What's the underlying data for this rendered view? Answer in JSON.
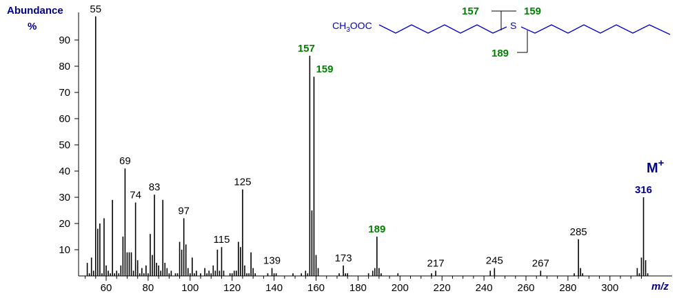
{
  "chart_data": {
    "type": "bar",
    "ylabel_line1": "Abundance",
    "ylabel_line2": "%",
    "xlabel": "m/z",
    "xlim": [
      44,
      320
    ],
    "ylim": [
      0,
      100
    ],
    "x_ticks": [
      60,
      80,
      100,
      120,
      140,
      160,
      180,
      200,
      220,
      240,
      260,
      280,
      300
    ],
    "y_ticks": [
      10,
      20,
      30,
      40,
      50,
      60,
      70,
      80,
      90
    ],
    "colors": {
      "axis": "#000000",
      "peak": "#000000",
      "highlight": "#008000",
      "molecular": "#00008b",
      "structure": "#0000cd"
    },
    "peaks": [
      [
        51,
        5
      ],
      [
        52,
        1
      ],
      [
        53,
        7
      ],
      [
        54,
        2
      ],
      [
        55,
        99
      ],
      [
        56,
        18
      ],
      [
        57,
        20
      ],
      [
        58,
        1
      ],
      [
        59,
        22
      ],
      [
        60,
        4
      ],
      [
        61,
        2
      ],
      [
        62,
        1
      ],
      [
        63,
        29
      ],
      [
        64,
        1
      ],
      [
        65,
        2
      ],
      [
        66,
        1
      ],
      [
        67,
        4
      ],
      [
        68,
        15
      ],
      [
        69,
        41
      ],
      [
        70,
        9
      ],
      [
        71,
        9
      ],
      [
        72,
        9
      ],
      [
        73,
        2
      ],
      [
        74,
        28
      ],
      [
        75,
        6
      ],
      [
        76,
        1
      ],
      [
        77,
        3
      ],
      [
        78,
        1
      ],
      [
        79,
        4
      ],
      [
        80,
        1
      ],
      [
        81,
        16
      ],
      [
        82,
        8
      ],
      [
        83,
        31
      ],
      [
        84,
        5
      ],
      [
        85,
        4
      ],
      [
        86,
        2
      ],
      [
        87,
        29
      ],
      [
        88,
        5
      ],
      [
        89,
        3
      ],
      [
        90,
        1
      ],
      [
        91,
        2
      ],
      [
        93,
        1
      ],
      [
        94,
        1
      ],
      [
        95,
        13
      ],
      [
        96,
        10
      ],
      [
        97,
        22
      ],
      [
        98,
        12
      ],
      [
        99,
        3
      ],
      [
        100,
        1
      ],
      [
        101,
        7
      ],
      [
        102,
        1
      ],
      [
        103,
        2
      ],
      [
        105,
        1
      ],
      [
        107,
        3
      ],
      [
        108,
        1
      ],
      [
        109,
        2
      ],
      [
        110,
        1
      ],
      [
        111,
        4
      ],
      [
        112,
        2
      ],
      [
        113,
        10
      ],
      [
        114,
        2
      ],
      [
        115,
        11
      ],
      [
        116,
        2
      ],
      [
        119,
        1
      ],
      [
        120,
        1
      ],
      [
        121,
        2
      ],
      [
        122,
        2
      ],
      [
        123,
        13
      ],
      [
        124,
        11
      ],
      [
        125,
        33
      ],
      [
        126,
        4
      ],
      [
        127,
        1
      ],
      [
        128,
        1
      ],
      [
        129,
        9
      ],
      [
        130,
        3
      ],
      [
        131,
        1
      ],
      [
        137,
        1
      ],
      [
        139,
        3
      ],
      [
        140,
        1
      ],
      [
        141,
        1
      ],
      [
        149,
        1
      ],
      [
        153,
        1
      ],
      [
        155,
        2
      ],
      [
        156,
        1
      ],
      [
        157,
        84
      ],
      [
        158,
        25
      ],
      [
        159,
        76
      ],
      [
        160,
        8
      ],
      [
        161,
        3
      ],
      [
        171,
        1
      ],
      [
        173,
        4
      ],
      [
        174,
        1
      ],
      [
        175,
        1
      ],
      [
        185,
        1
      ],
      [
        187,
        2
      ],
      [
        188,
        3
      ],
      [
        189,
        15
      ],
      [
        190,
        3
      ],
      [
        191,
        1
      ],
      [
        199,
        1
      ],
      [
        215,
        1
      ],
      [
        217,
        2
      ],
      [
        243,
        2
      ],
      [
        245,
        3
      ],
      [
        267,
        2
      ],
      [
        283,
        1
      ],
      [
        285,
        14
      ],
      [
        286,
        3
      ],
      [
        287,
        1
      ],
      [
        313,
        3
      ],
      [
        314,
        1
      ],
      [
        315,
        7
      ],
      [
        316,
        30
      ],
      [
        317,
        6
      ],
      [
        318,
        1
      ]
    ],
    "labels": [
      {
        "x": 55,
        "text": "55",
        "color": "black"
      },
      {
        "x": 69,
        "text": "69",
        "color": "black"
      },
      {
        "x": 74,
        "text": "74",
        "color": "black"
      },
      {
        "x": 83,
        "text": "83",
        "color": "black"
      },
      {
        "x": 97,
        "text": "97",
        "color": "black"
      },
      {
        "x": 115,
        "text": "115",
        "color": "black"
      },
      {
        "x": 125,
        "text": "125",
        "color": "black"
      },
      {
        "x": 139,
        "text": "139",
        "color": "black"
      },
      {
        "x": 157,
        "text": "157",
        "color": "green"
      },
      {
        "x": 159,
        "text": "159",
        "color": "green"
      },
      {
        "x": 173,
        "text": "173",
        "color": "black"
      },
      {
        "x": 189,
        "text": "189",
        "color": "green"
      },
      {
        "x": 217,
        "text": "217",
        "color": "black"
      },
      {
        "x": 245,
        "text": "245",
        "color": "black"
      },
      {
        "x": 267,
        "text": "267",
        "color": "black"
      },
      {
        "x": 285,
        "text": "285",
        "color": "black"
      },
      {
        "x": 316,
        "text": "316",
        "color": "navy"
      }
    ],
    "molecular_ion_label": "M",
    "molecular_ion_sup": "+"
  },
  "structure": {
    "ester_prefix": "CH",
    "ester_sub": "3",
    "ester_suffix": "OOC",
    "heteroatom": "S",
    "frag_left": "157",
    "frag_right": "159",
    "frag_bottom": "189"
  }
}
